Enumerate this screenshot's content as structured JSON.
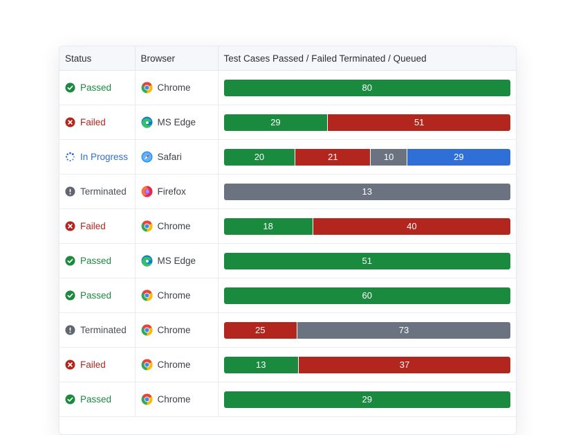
{
  "colors": {
    "passed": "#1a8a3f",
    "failed": "#b3261e",
    "terminated": "#6b7280",
    "queued": "#2f6fd6"
  },
  "table": {
    "headers": {
      "status": "Status",
      "browser": "Browser",
      "progress": "Test Cases Passed / Failed Terminated / Queued"
    },
    "rows": [
      {
        "status": "Passed",
        "status_key": "passed",
        "browser": "Chrome",
        "browser_key": "chrome",
        "passed": 80,
        "failed": 0,
        "terminated": 0,
        "queued": 0
      },
      {
        "status": "Failed",
        "status_key": "failed",
        "browser": "MS Edge",
        "browser_key": "edge",
        "passed": 29,
        "failed": 51,
        "terminated": 0,
        "queued": 0
      },
      {
        "status": "In Progress",
        "status_key": "progress",
        "browser": "Safari",
        "browser_key": "safari",
        "passed": 20,
        "failed": 21,
        "terminated": 10,
        "queued": 29
      },
      {
        "status": "Terminated",
        "status_key": "terminated",
        "browser": "Firefox",
        "browser_key": "firefox",
        "passed": 0,
        "failed": 0,
        "terminated": 13,
        "queued": 0
      },
      {
        "status": "Failed",
        "status_key": "failed",
        "browser": "Chrome",
        "browser_key": "chrome",
        "passed": 18,
        "failed": 40,
        "terminated": 0,
        "queued": 0
      },
      {
        "status": "Passed",
        "status_key": "passed",
        "browser": "MS Edge",
        "browser_key": "edge",
        "passed": 51,
        "failed": 0,
        "terminated": 0,
        "queued": 0
      },
      {
        "status": "Passed",
        "status_key": "passed",
        "browser": "Chrome",
        "browser_key": "chrome",
        "passed": 60,
        "failed": 0,
        "terminated": 0,
        "queued": 0
      },
      {
        "status": "Terminated",
        "status_key": "terminated",
        "browser": "Chrome",
        "browser_key": "chrome",
        "passed": 0,
        "failed": 25,
        "terminated": 73,
        "queued": 0
      },
      {
        "status": "Failed",
        "status_key": "failed",
        "browser": "Chrome",
        "browser_key": "chrome",
        "passed": 13,
        "failed": 37,
        "terminated": 0,
        "queued": 0
      },
      {
        "status": "Passed",
        "status_key": "passed",
        "browser": "Chrome",
        "browser_key": "chrome",
        "passed": 29,
        "failed": 0,
        "terminated": 0,
        "queued": 0
      }
    ]
  }
}
